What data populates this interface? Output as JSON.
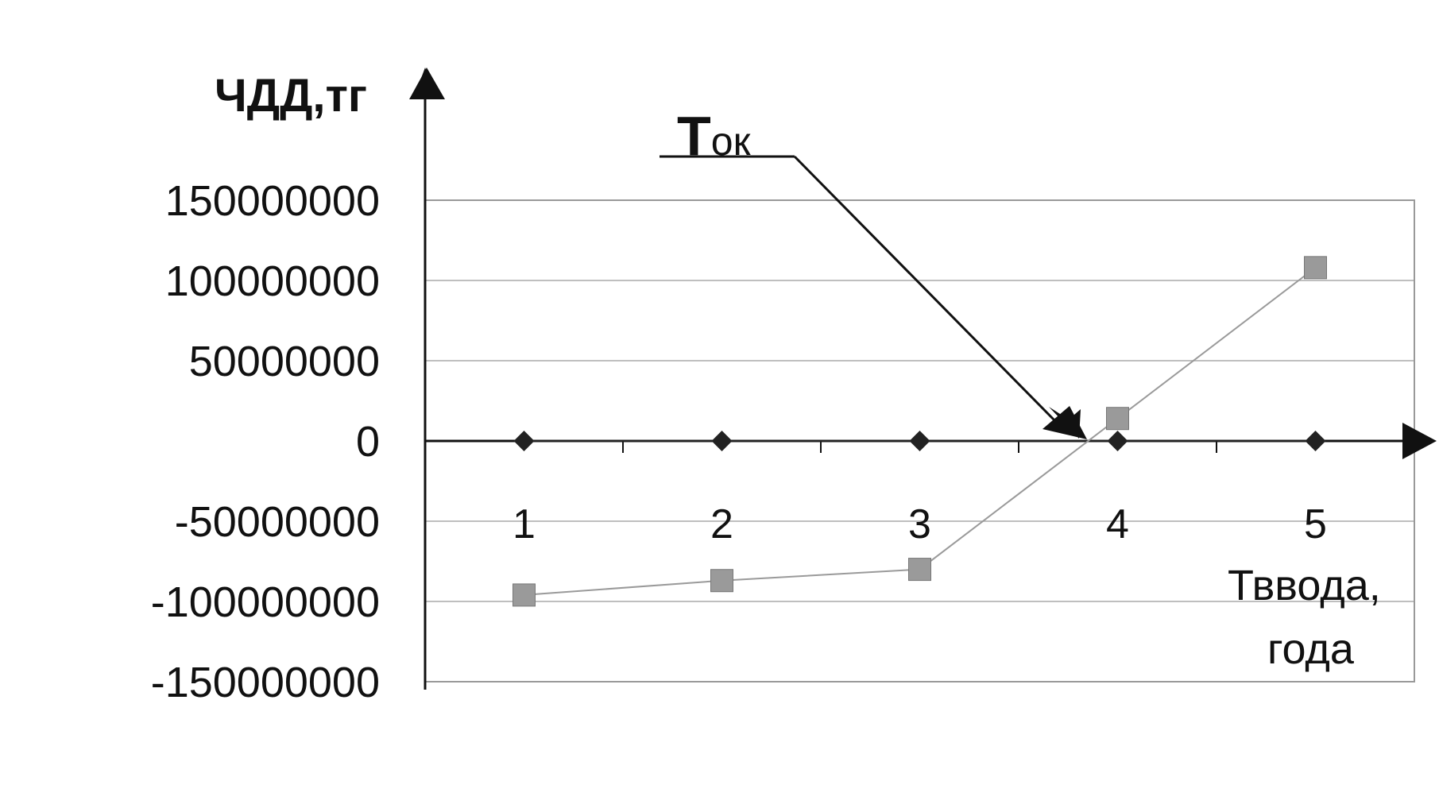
{
  "chart_data": {
    "type": "line",
    "categories": [
      "1",
      "2",
      "3",
      "4",
      "5"
    ],
    "ylabel": "ЧДД,тг",
    "xlabel_line1": "Тввода,",
    "xlabel_line2": "года",
    "ylim": [
      -150000000,
      150000000
    ],
    "yticks": [
      "150000000",
      "100000000",
      "50000000",
      "0",
      "-50000000",
      "-100000000",
      "-150000000"
    ],
    "ytick_values": [
      150000000,
      100000000,
      50000000,
      0,
      -50000000,
      -100000000,
      -150000000
    ],
    "grid": true,
    "series": [
      {
        "values": [
          0,
          0,
          0,
          0,
          0
        ],
        "color": "#222222",
        "marker": "diamond"
      },
      {
        "values": [
          -96000000,
          -87000000,
          -80000000,
          14000000,
          108000000
        ],
        "color": "#9a9a9a",
        "marker": "square"
      }
    ],
    "annotation": {
      "text_big": "Т",
      "text_small": "ок"
    }
  }
}
